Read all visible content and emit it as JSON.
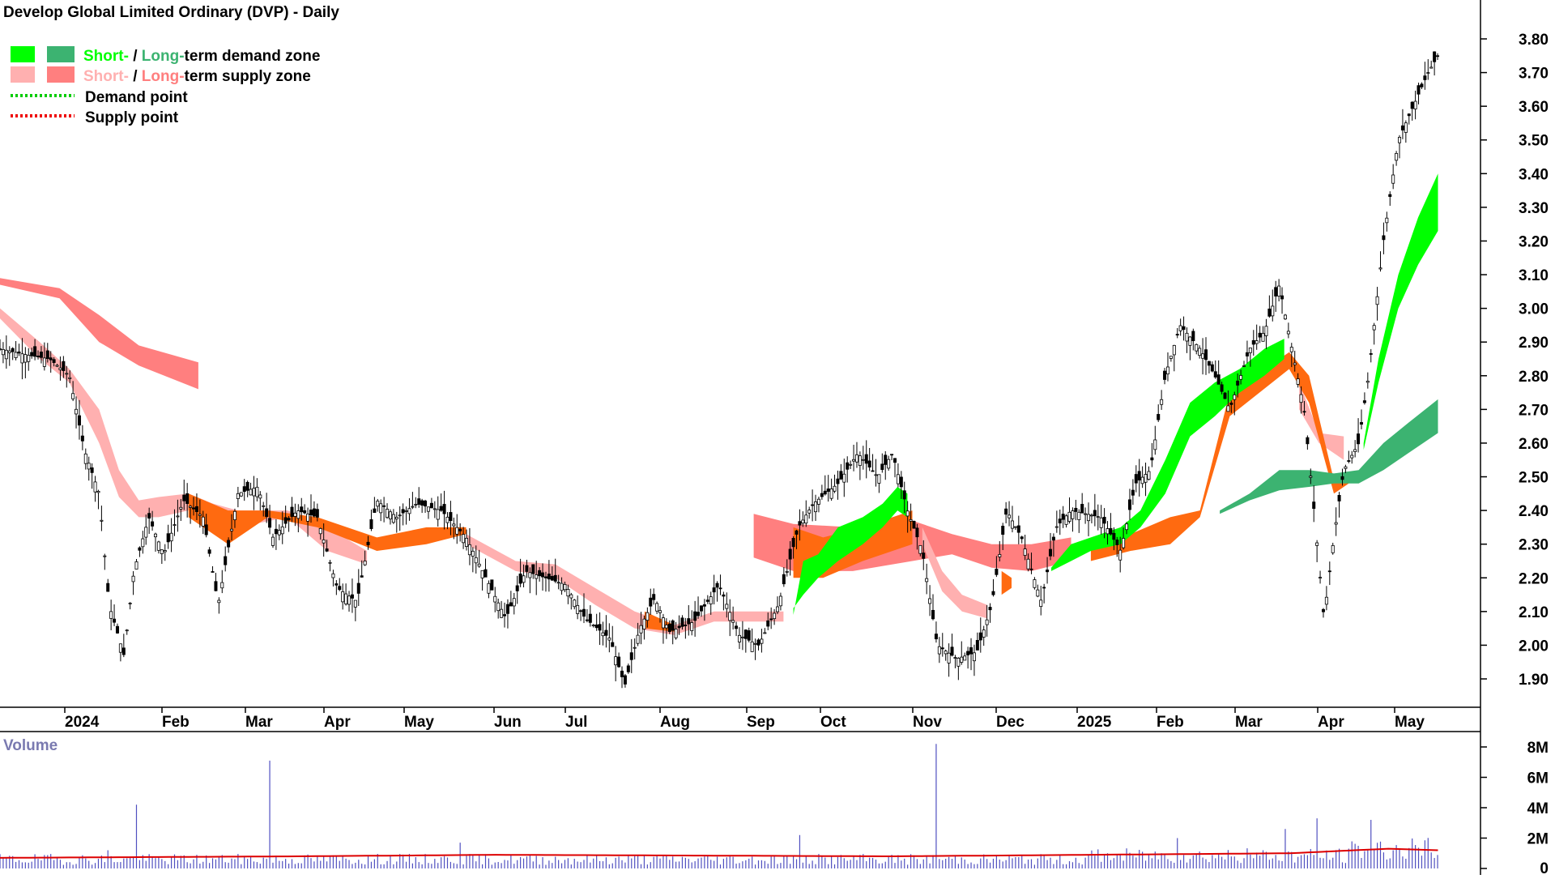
{
  "title": "Develop Global Limited Ordinary (DVP) - Daily",
  "legend": {
    "demand_zone": {
      "short": "Short-",
      "sep": " / ",
      "long": "Long-",
      "rest": "term demand zone"
    },
    "supply_zone": {
      "short": "Short-",
      "sep": " / ",
      "long": "Long-",
      "rest": "term supply zone"
    },
    "demand_point": "Demand point",
    "supply_point": "Supply point"
  },
  "colors": {
    "short_demand": "#00ff00",
    "long_demand": "#3cb371",
    "short_supply": "#ffb0b0",
    "long_supply": "#ff7f7f",
    "overlap": "#ff6a10",
    "demand_point": "#00cc00",
    "supply_point": "#ee0000",
    "volume_bar": "#5050c0",
    "volume_avg": "#dd0000"
  },
  "volume_label": "Volume",
  "chart_data": [
    {
      "type": "candlestick",
      "title": "Develop Global Limited Ordinary (DVP) - Daily",
      "x_ticks": [
        "2024",
        "Feb",
        "Mar",
        "Apr",
        "May",
        "Jun",
        "Jul",
        "Aug",
        "Sep",
        "Oct",
        "Nov",
        "Dec",
        "2025",
        "Feb",
        "Mar",
        "Apr",
        "May"
      ],
      "y_ticks": [
        "1.90",
        "2.00",
        "2.10",
        "2.20",
        "2.30",
        "2.40",
        "2.50",
        "2.60",
        "2.70",
        "2.80",
        "2.90",
        "3.00",
        "3.10",
        "3.20",
        "3.30",
        "3.40",
        "3.50",
        "3.60",
        "3.70",
        "3.80"
      ],
      "ylim": [
        1.82,
        3.84
      ],
      "close_path": [
        [
          0,
          2.88
        ],
        [
          30,
          2.86
        ],
        [
          50,
          2.85
        ],
        [
          70,
          2.8
        ],
        [
          85,
          2.58
        ],
        [
          100,
          2.45
        ],
        [
          110,
          2.12
        ],
        [
          125,
          1.97
        ],
        [
          135,
          2.22
        ],
        [
          150,
          2.38
        ],
        [
          165,
          2.27
        ],
        [
          185,
          2.43
        ],
        [
          205,
          2.38
        ],
        [
          220,
          2.12
        ],
        [
          240,
          2.45
        ],
        [
          260,
          2.47
        ],
        [
          275,
          2.32
        ],
        [
          300,
          2.4
        ],
        [
          320,
          2.38
        ],
        [
          340,
          2.17
        ],
        [
          360,
          2.13
        ],
        [
          380,
          2.43
        ],
        [
          400,
          2.38
        ],
        [
          420,
          2.42
        ],
        [
          445,
          2.4
        ],
        [
          470,
          2.32
        ],
        [
          490,
          2.2
        ],
        [
          510,
          2.08
        ],
        [
          530,
          2.22
        ],
        [
          550,
          2.2
        ],
        [
          570,
          2.18
        ],
        [
          590,
          2.08
        ],
        [
          615,
          2.02
        ],
        [
          630,
          1.88
        ],
        [
          645,
          2.05
        ],
        [
          660,
          2.14
        ],
        [
          675,
          2.04
        ],
        [
          700,
          2.07
        ],
        [
          725,
          2.18
        ],
        [
          745,
          2.03
        ],
        [
          765,
          2.0
        ],
        [
          785,
          2.12
        ],
        [
          805,
          2.35
        ],
        [
          820,
          2.42
        ],
        [
          845,
          2.48
        ],
        [
          865,
          2.57
        ],
        [
          885,
          2.5
        ],
        [
          900,
          2.57
        ],
        [
          915,
          2.4
        ],
        [
          930,
          2.28
        ],
        [
          945,
          2.0
        ],
        [
          965,
          1.96
        ],
        [
          985,
          1.98
        ],
        [
          1000,
          2.12
        ],
        [
          1015,
          2.4
        ],
        [
          1030,
          2.32
        ],
        [
          1050,
          2.13
        ],
        [
          1065,
          2.35
        ],
        [
          1080,
          2.4
        ],
        [
          1110,
          2.38
        ],
        [
          1130,
          2.28
        ],
        [
          1145,
          2.48
        ],
        [
          1160,
          2.52
        ],
        [
          1175,
          2.8
        ],
        [
          1190,
          2.95
        ],
        [
          1210,
          2.88
        ],
        [
          1225,
          2.8
        ],
        [
          1240,
          2.7
        ],
        [
          1260,
          2.88
        ],
        [
          1275,
          2.93
        ],
        [
          1290,
          3.07
        ],
        [
          1300,
          2.92
        ],
        [
          1315,
          2.7
        ],
        [
          1325,
          2.4
        ],
        [
          1335,
          2.08
        ],
        [
          1345,
          2.32
        ],
        [
          1355,
          2.52
        ],
        [
          1370,
          2.6
        ],
        [
          1380,
          2.8
        ],
        [
          1395,
          3.2
        ],
        [
          1410,
          3.5
        ],
        [
          1425,
          3.6
        ],
        [
          1440,
          3.7
        ],
        [
          1450,
          3.75
        ]
      ],
      "short_demand_zone": [
        [
          800,
          2.09,
          2.11
        ],
        [
          810,
          2.25,
          2.15
        ],
        [
          825,
          2.27,
          2.2
        ],
        [
          845,
          2.35,
          2.25
        ],
        [
          870,
          2.38,
          2.3
        ],
        [
          890,
          2.42,
          2.35
        ],
        [
          905,
          2.47,
          2.4
        ],
        [
          915,
          2.45,
          2.38
        ],
        [
          1060,
          2.23,
          2.22
        ],
        [
          1080,
          2.3,
          2.25
        ],
        [
          1100,
          2.32,
          2.28
        ],
        [
          1130,
          2.35,
          2.3
        ],
        [
          1150,
          2.4,
          2.35
        ],
        [
          1175,
          2.55,
          2.45
        ],
        [
          1200,
          2.72,
          2.62
        ],
        [
          1225,
          2.78,
          2.68
        ],
        [
          1250,
          2.82,
          2.75
        ],
        [
          1275,
          2.88,
          2.8
        ],
        [
          1295,
          2.91,
          2.85
        ],
        [
          1375,
          2.6,
          2.58
        ],
        [
          1390,
          2.85,
          2.78
        ],
        [
          1410,
          3.1,
          3.0
        ],
        [
          1430,
          3.27,
          3.13
        ],
        [
          1450,
          3.4,
          3.23
        ]
      ],
      "long_demand_zone": [
        [
          1230,
          2.4,
          2.39
        ],
        [
          1260,
          2.45,
          2.43
        ],
        [
          1290,
          2.52,
          2.46
        ],
        [
          1320,
          2.52,
          2.47
        ],
        [
          1345,
          2.51,
          2.48
        ],
        [
          1370,
          2.52,
          2.48
        ],
        [
          1395,
          2.6,
          2.52
        ],
        [
          1420,
          2.66,
          2.57
        ],
        [
          1450,
          2.73,
          2.63
        ]
      ],
      "short_supply_zone": [
        [
          0,
          3.0,
          2.97
        ],
        [
          40,
          2.9,
          2.85
        ],
        [
          70,
          2.82,
          2.78
        ],
        [
          100,
          2.7,
          2.6
        ],
        [
          120,
          2.52,
          2.44
        ],
        [
          140,
          2.43,
          2.38
        ],
        [
          160,
          2.44,
          2.38
        ],
        [
          190,
          2.45,
          2.4
        ],
        [
          215,
          2.42,
          2.33
        ],
        [
          240,
          2.4,
          2.35
        ],
        [
          290,
          2.4,
          2.38
        ],
        [
          330,
          2.35,
          2.28
        ],
        [
          370,
          2.28,
          2.24
        ],
        [
          470,
          2.33,
          2.3
        ],
        [
          520,
          2.25,
          2.22
        ],
        [
          560,
          2.24,
          2.2
        ],
        [
          600,
          2.17,
          2.12
        ],
        [
          640,
          2.1,
          2.05
        ],
        [
          680,
          2.06,
          2.03
        ],
        [
          720,
          2.1,
          2.07
        ],
        [
          760,
          2.1,
          2.07
        ],
        [
          790,
          2.1,
          2.07
        ],
        [
          930,
          2.35,
          2.3
        ],
        [
          950,
          2.22,
          2.16
        ],
        [
          970,
          2.15,
          2.1
        ],
        [
          995,
          2.12,
          2.08
        ],
        [
          1310,
          2.78,
          2.7
        ],
        [
          1330,
          2.63,
          2.6
        ],
        [
          1355,
          2.62,
          2.55
        ]
      ],
      "long_supply_zone": [
        [
          0,
          3.09,
          3.07
        ],
        [
          60,
          3.06,
          3.03
        ],
        [
          100,
          2.98,
          2.9
        ],
        [
          140,
          2.89,
          2.83
        ],
        [
          200,
          2.84,
          2.76
        ],
        [
          280,
          2.77,
          2.68
        ],
        [
          360,
          2.71,
          2.62
        ],
        [
          440,
          2.65,
          2.57
        ],
        [
          520,
          2.59,
          2.49
        ],
        [
          600,
          2.52,
          2.43
        ],
        [
          680,
          2.46,
          2.35
        ],
        [
          760,
          2.39,
          2.26
        ],
        [
          800,
          2.36,
          2.22
        ],
        [
          860,
          2.35,
          2.22
        ],
        [
          920,
          2.37,
          2.25
        ],
        [
          960,
          2.33,
          2.27
        ],
        [
          1000,
          2.3,
          2.23
        ],
        [
          1040,
          2.3,
          2.22
        ],
        [
          1080,
          2.32,
          2.25
        ]
      ],
      "overlap_zone": [
        [
          190,
          2.45,
          2.38
        ],
        [
          230,
          2.4,
          2.3
        ],
        [
          270,
          2.4,
          2.38
        ],
        [
          320,
          2.38,
          2.35
        ],
        [
          380,
          2.32,
          2.28
        ],
        [
          430,
          2.35,
          2.3
        ],
        [
          470,
          2.35,
          2.33
        ],
        [
          650,
          2.1,
          2.05
        ],
        [
          680,
          2.06,
          2.04
        ],
        [
          800,
          2.35,
          2.2
        ],
        [
          830,
          2.32,
          2.2
        ],
        [
          870,
          2.35,
          2.25
        ],
        [
          920,
          2.4,
          2.3
        ],
        [
          1010,
          2.22,
          2.15
        ],
        [
          1020,
          2.2,
          2.17
        ],
        [
          1100,
          2.31,
          2.25
        ],
        [
          1140,
          2.33,
          2.28
        ],
        [
          1180,
          2.38,
          2.3
        ],
        [
          1210,
          2.4,
          2.38
        ],
        [
          1240,
          2.75,
          2.68
        ],
        [
          1300,
          2.87,
          2.82
        ],
        [
          1320,
          2.8,
          2.72
        ],
        [
          1345,
          2.49,
          2.45
        ],
        [
          1360,
          2.5,
          2.48
        ]
      ]
    },
    {
      "type": "bar",
      "title": "Volume",
      "y_ticks": [
        "8M",
        "6M",
        "4M",
        "2M",
        "0"
      ],
      "ylim": [
        0,
        8400000
      ],
      "baseline_millions": 0.6,
      "spikes_millions": [
        [
          110,
          1.2
        ],
        [
          137,
          4.2
        ],
        [
          272,
          7.1
        ],
        [
          463,
          1.7
        ],
        [
          805,
          2.2
        ],
        [
          943,
          8.2
        ],
        [
          1187,
          2.0
        ],
        [
          1297,
          2.6
        ],
        [
          1329,
          3.3
        ],
        [
          1381,
          3.2
        ]
      ],
      "avg_line_millions": [
        [
          0,
          0.7
        ],
        [
          300,
          0.8
        ],
        [
          500,
          0.9
        ],
        [
          900,
          0.8
        ],
        [
          1100,
          0.9
        ],
        [
          1300,
          1.0
        ],
        [
          1400,
          1.3
        ],
        [
          1450,
          1.2
        ]
      ]
    }
  ]
}
